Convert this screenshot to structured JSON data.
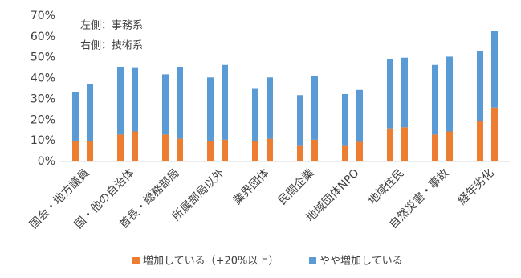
{
  "chart_data": {
    "type": "bar",
    "stacked": true,
    "annotations": [
      "左側：事務系",
      "右側：技術系"
    ],
    "categories": [
      "国会・地方議員",
      "国・他の自治体",
      "首長・総務部局",
      "所属部局以外",
      "業界団体",
      "民間企業",
      "地域団体NPO",
      "地域住民",
      "自然災害・事故",
      "経年劣化"
    ],
    "series": [
      {
        "name": "増加している（+20%以上）",
        "color": "#ed7d31",
        "values": [
          [
            10,
            10
          ],
          [
            13,
            14.5
          ],
          [
            13,
            11
          ],
          [
            10,
            10.5
          ],
          [
            10,
            11
          ],
          [
            7.5,
            10.5
          ],
          [
            7.5,
            9.5
          ],
          [
            16,
            16.5
          ],
          [
            13,
            14.5
          ],
          [
            19.5,
            26
          ]
        ]
      },
      {
        "name": "やや増加している",
        "color": "#5b9bd5",
        "values": [
          [
            23.5,
            27.5
          ],
          [
            32.5,
            30.5
          ],
          [
            29,
            34.5
          ],
          [
            30.5,
            36
          ],
          [
            25,
            29.5
          ],
          [
            24.5,
            30.5
          ],
          [
            25,
            25
          ],
          [
            33.5,
            33.5
          ],
          [
            33.5,
            36
          ],
          [
            33.5,
            37
          ]
        ]
      }
    ],
    "ylim": [
      0,
      70
    ],
    "yticks": [
      {
        "value": 0,
        "label": "0%"
      },
      {
        "value": 10,
        "label": "10%"
      },
      {
        "value": 20,
        "label": "20%"
      },
      {
        "value": 30,
        "label": "30%"
      },
      {
        "value": 40,
        "label": "40%"
      },
      {
        "value": 50,
        "label": "50%"
      },
      {
        "value": 60,
        "label": "60%"
      },
      {
        "value": 70,
        "label": "70%"
      }
    ],
    "grid": false,
    "legend": "bottom"
  }
}
